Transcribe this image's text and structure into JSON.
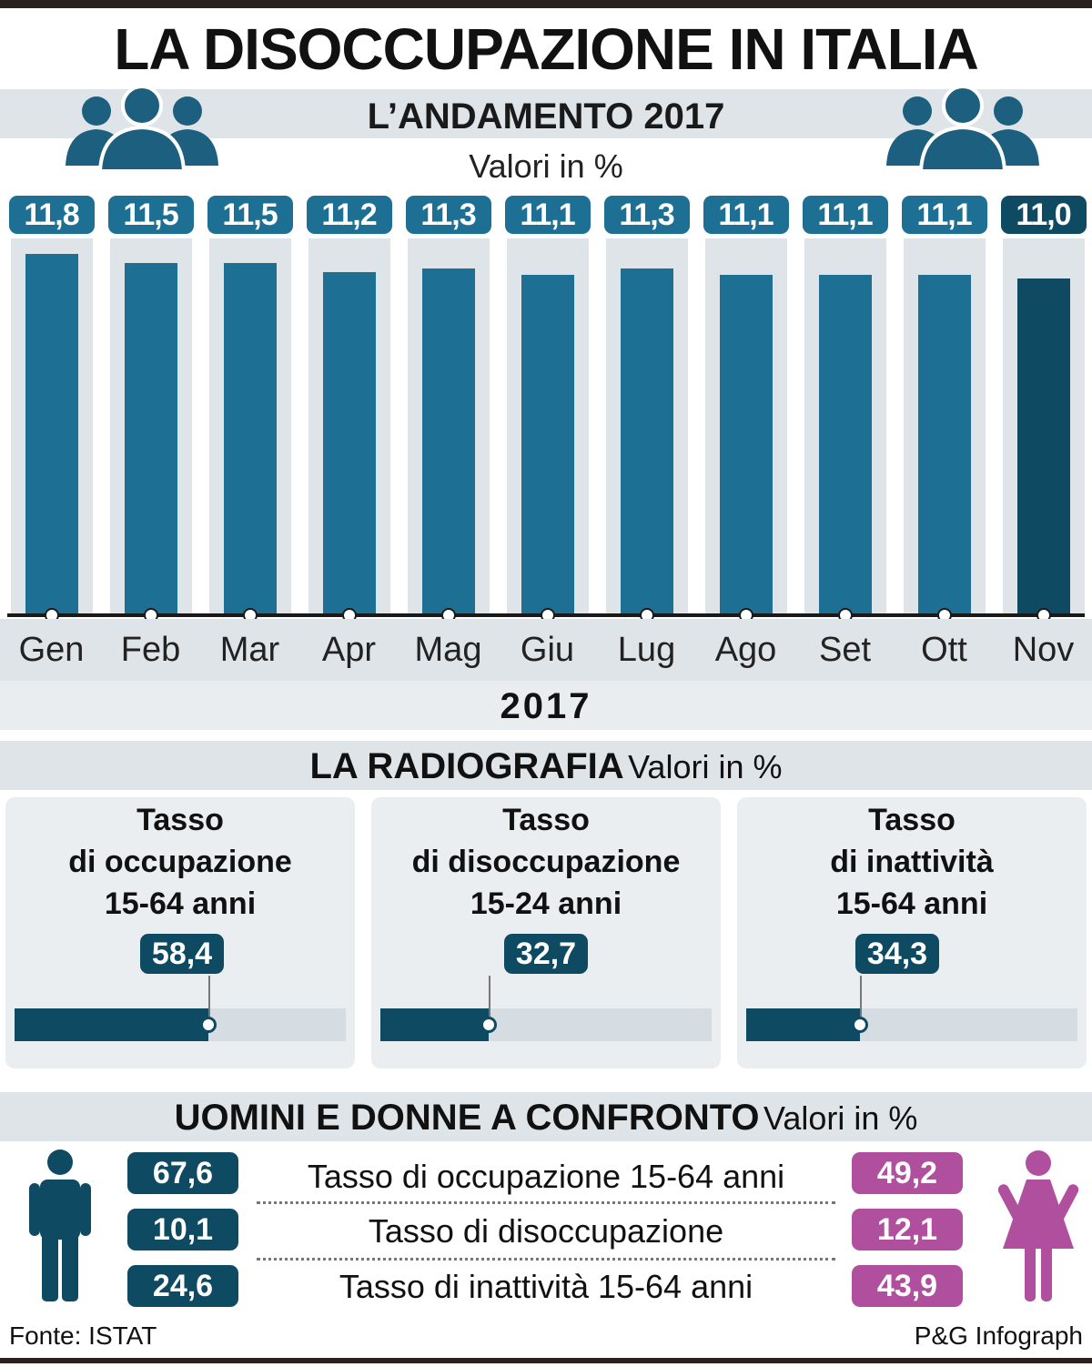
{
  "header": {
    "title": "LA DISOCCUPAZIONE IN ITALIA",
    "subtitle": "L’ANDAMENTO 2017",
    "unit": "Valori in %"
  },
  "chart_data": {
    "type": "bar",
    "title": "L’ANDAMENTO 2017",
    "ylabel": "Valori in %",
    "xlabel": "2017",
    "categories": [
      "Gen",
      "Feb",
      "Mar",
      "Apr",
      "Mag",
      "Giu",
      "Lug",
      "Ago",
      "Set",
      "Ott",
      "Nov"
    ],
    "values": [
      11.8,
      11.5,
      11.5,
      11.2,
      11.3,
      11.1,
      11.3,
      11.1,
      11.1,
      11.1,
      11.0
    ],
    "value_labels": [
      "11,8",
      "11,5",
      "11,5",
      "11,2",
      "11,3",
      "11,1",
      "11,3",
      "11,1",
      "11,1",
      "11,1",
      "11,0"
    ],
    "colors": {
      "bar": "#1d6f93",
      "last_bar": "#0f4a63",
      "bar_bg": "#dee4e8"
    }
  },
  "radiografia": {
    "title": "LA RADIOGRAFIA",
    "unit": "Valori in %",
    "panels": [
      {
        "line1": "Tasso",
        "line2": "di occupazione",
        "line3": "15-64 anni",
        "value": 58.4,
        "value_label": "58,4"
      },
      {
        "line1": "Tasso",
        "line2": "di disoccupazione",
        "line3": "15-24 anni",
        "value": 32.7,
        "value_label": "32,7"
      },
      {
        "line1": "Tasso",
        "line2": "di inattività",
        "line3": "15-64 anni",
        "value": 34.3,
        "value_label": "34,3"
      }
    ]
  },
  "confronto": {
    "title": "UOMINI E DONNE A CONFRONTO",
    "unit": "Valori in %",
    "rows": [
      {
        "label": "Tasso di occupazione 15-64 anni",
        "men": "67,6",
        "women": "49,2"
      },
      {
        "label": "Tasso di disoccupazione",
        "men": "10,1",
        "women": "12,1"
      },
      {
        "label": "Tasso di inattività 15-64 anni",
        "men": "24,6",
        "women": "43,9"
      }
    ],
    "colors": {
      "men": "#0f4a63",
      "women": "#b14f9f"
    }
  },
  "footer": {
    "source": "Fonte: ISTAT",
    "credit": "P&G Infograph"
  }
}
